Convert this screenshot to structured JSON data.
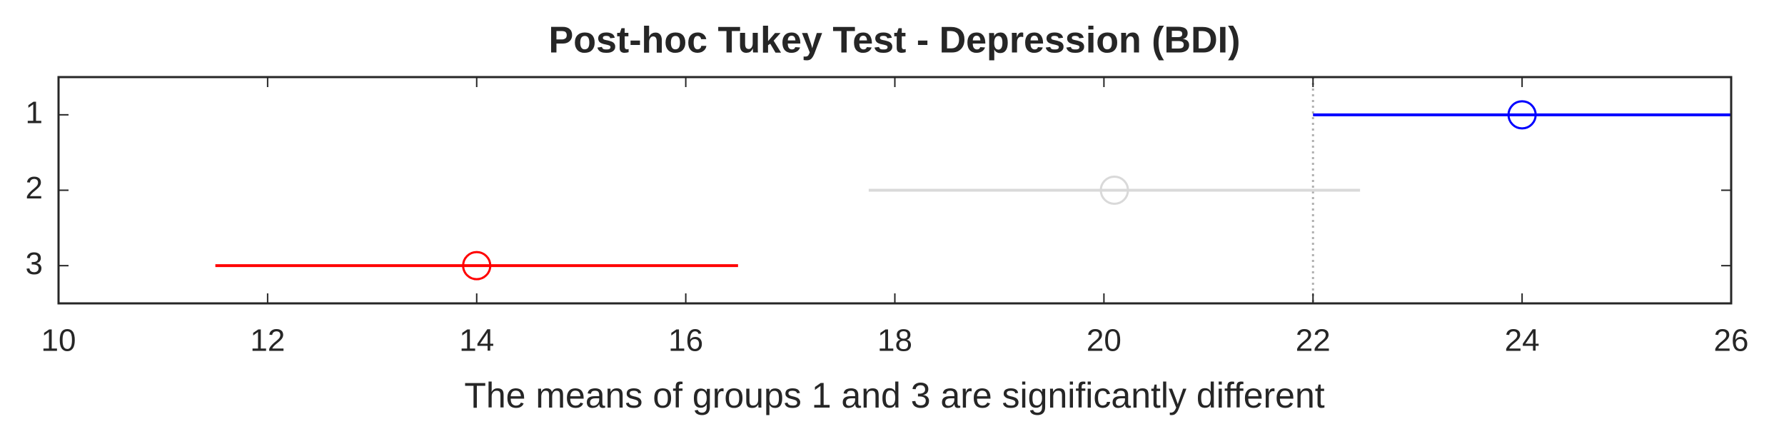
{
  "chart_data": {
    "type": "interval",
    "title": "Post-hoc Tukey Test - Depression (BDI)",
    "xlabel": "The means of groups 1 and 3 are significantly different",
    "categories": [
      "1",
      "2",
      "3"
    ],
    "values": [
      24,
      20.1,
      14
    ],
    "lower": [
      22,
      17.75,
      11.5
    ],
    "upper": [
      26,
      22.45,
      16.5
    ],
    "colors": [
      "#0000ff",
      "#d9d9d9",
      "#ff0000"
    ],
    "xlim": [
      10,
      26
    ],
    "xticks": [
      10,
      12,
      14,
      16,
      18,
      20,
      22,
      24,
      26
    ],
    "ylim": [
      0.5,
      3.5
    ],
    "y_reversed": true
  }
}
